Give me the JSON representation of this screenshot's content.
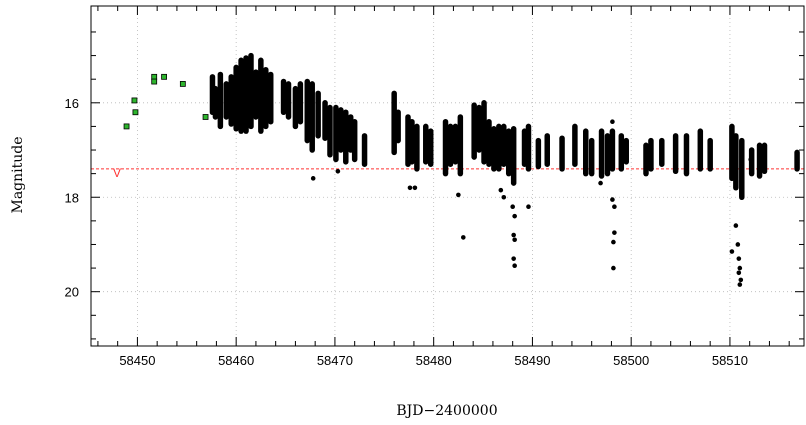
{
  "chart_data": {
    "type": "scatter",
    "title": "",
    "xlabel": "BJD−2400000",
    "ylabel": "Magnitude",
    "xlim": [
      58445.3,
      58517.5
    ],
    "ylim": [
      21.15,
      13.95
    ],
    "y_inverted": true,
    "x_ticks": [
      58450,
      58460,
      58470,
      58480,
      58490,
      58500,
      58510
    ],
    "x_tick_labels": [
      "58450",
      "58460",
      "58470",
      "58480",
      "58490",
      "58500",
      "58510"
    ],
    "y_ticks": [
      16,
      18,
      20
    ],
    "y_tick_labels": [
      "16",
      "18",
      "20"
    ],
    "grid": true,
    "reference_line": {
      "y": 17.4,
      "label": "V",
      "color": "#ff3333"
    },
    "series": [
      {
        "marker": "green-square",
        "color": "#2db52d",
        "points": [
          [
            58448.9,
            16.5
          ],
          [
            58449.7,
            15.95
          ],
          [
            58449.8,
            16.2
          ],
          [
            58451.7,
            15.45
          ],
          [
            58451.7,
            15.55
          ],
          [
            58452.7,
            15.45
          ],
          [
            58454.6,
            15.6
          ],
          [
            58456.9,
            16.3
          ]
        ]
      },
      {
        "marker": "black-dot",
        "color": "#000000",
        "clusters": [
          [
            58457.6,
            15.45,
            16.2
          ],
          [
            58457.9,
            15.7,
            16.3
          ],
          [
            58458.4,
            15.4,
            16.5
          ],
          [
            58459.0,
            15.6,
            16.3
          ],
          [
            58459.5,
            15.45,
            16.45
          ],
          [
            58460.0,
            15.25,
            16.55
          ],
          [
            58460.5,
            15.1,
            16.6
          ],
          [
            58461.0,
            15.05,
            16.6
          ],
          [
            58461.5,
            15.0,
            16.5
          ],
          [
            58462.0,
            15.35,
            16.3
          ],
          [
            58462.5,
            15.1,
            16.6
          ],
          [
            58463.0,
            15.3,
            16.5
          ],
          [
            58463.5,
            15.4,
            16.4
          ],
          [
            58464.8,
            15.55,
            16.2
          ],
          [
            58465.3,
            15.6,
            16.3
          ],
          [
            58466.0,
            15.7,
            16.5
          ],
          [
            58466.5,
            15.6,
            16.4
          ],
          [
            58467.2,
            15.55,
            16.8
          ],
          [
            58467.7,
            15.6,
            17.0
          ],
          [
            58468.3,
            15.8,
            16.7
          ],
          [
            58469.0,
            16.0,
            16.75
          ],
          [
            58469.5,
            16.1,
            17.1
          ],
          [
            58470.1,
            16.1,
            17.2
          ],
          [
            58470.6,
            16.15,
            17.0
          ],
          [
            58471.1,
            16.2,
            17.25
          ],
          [
            58471.6,
            16.3,
            17.0
          ],
          [
            58472.0,
            16.4,
            17.2
          ],
          [
            58473.0,
            16.7,
            17.3
          ],
          [
            58476.0,
            15.8,
            17.05
          ],
          [
            58476.4,
            16.2,
            16.8
          ],
          [
            58477.4,
            16.3,
            17.3
          ],
          [
            58477.8,
            16.4,
            17.25
          ],
          [
            58478.3,
            16.5,
            17.4
          ],
          [
            58479.2,
            16.5,
            17.25
          ],
          [
            58479.7,
            16.6,
            17.3
          ],
          [
            58481.2,
            16.4,
            17.5
          ],
          [
            58481.7,
            16.5,
            17.3
          ],
          [
            58482.2,
            16.5,
            17.25
          ],
          [
            58482.7,
            16.3,
            17.5
          ],
          [
            58484.1,
            16.05,
            17.15
          ],
          [
            58484.6,
            16.1,
            17.0
          ],
          [
            58485.1,
            16.0,
            17.25
          ],
          [
            58485.6,
            16.4,
            17.3
          ],
          [
            58486.1,
            16.55,
            17.4
          ],
          [
            58486.6,
            16.5,
            17.4
          ],
          [
            58487.1,
            16.5,
            17.3
          ],
          [
            58487.6,
            16.6,
            17.5
          ],
          [
            58488.1,
            16.55,
            17.7
          ],
          [
            58489.2,
            16.6,
            17.3
          ],
          [
            58489.6,
            16.5,
            17.4
          ],
          [
            58490.6,
            16.8,
            17.35
          ],
          [
            58491.5,
            16.7,
            17.3
          ],
          [
            58493.0,
            16.75,
            17.4
          ],
          [
            58494.3,
            16.5,
            17.3
          ],
          [
            58495.4,
            16.6,
            17.5
          ],
          [
            58496.0,
            16.8,
            17.5
          ],
          [
            58497.0,
            16.6,
            17.55
          ],
          [
            58497.6,
            16.7,
            17.5
          ],
          [
            58498.1,
            16.6,
            17.4
          ],
          [
            58499.0,
            16.7,
            17.4
          ],
          [
            58499.5,
            16.8,
            17.25
          ],
          [
            58501.5,
            16.9,
            17.5
          ],
          [
            58502.0,
            16.8,
            17.4
          ],
          [
            58503.1,
            16.8,
            17.3
          ],
          [
            58504.5,
            16.7,
            17.45
          ],
          [
            58505.6,
            16.7,
            17.5
          ],
          [
            58507.0,
            16.6,
            17.4
          ],
          [
            58508.0,
            16.8,
            17.4
          ],
          [
            58510.2,
            16.5,
            17.6
          ],
          [
            58510.6,
            16.7,
            17.8
          ],
          [
            58511.2,
            16.8,
            18.0
          ],
          [
            58512.2,
            17.0,
            17.5
          ],
          [
            58513.0,
            16.9,
            17.55
          ],
          [
            58513.5,
            16.9,
            17.45
          ],
          [
            58516.8,
            17.05,
            17.4
          ]
        ],
        "outliers": [
          [
            58467.8,
            17.6
          ],
          [
            58470.3,
            17.45
          ],
          [
            58477.6,
            17.8
          ],
          [
            58478.1,
            17.8
          ],
          [
            58482.5,
            17.95
          ],
          [
            58483.0,
            18.85
          ],
          [
            58486.8,
            17.85
          ],
          [
            58487.1,
            18.0
          ],
          [
            58488.0,
            18.2
          ],
          [
            58488.2,
            18.4
          ],
          [
            58488.1,
            18.8
          ],
          [
            58488.2,
            18.9
          ],
          [
            58488.1,
            19.3
          ],
          [
            58488.2,
            19.45
          ],
          [
            58489.6,
            18.2
          ],
          [
            58496.9,
            17.7
          ],
          [
            58498.1,
            18.05
          ],
          [
            58498.3,
            18.2
          ],
          [
            58498.3,
            18.75
          ],
          [
            58498.2,
            18.95
          ],
          [
            58498.2,
            19.5
          ],
          [
            58498.1,
            16.4
          ],
          [
            58510.2,
            19.15
          ],
          [
            58510.6,
            18.6
          ],
          [
            58510.8,
            19.0
          ],
          [
            58510.9,
            19.3
          ],
          [
            58511.0,
            19.5
          ],
          [
            58510.9,
            19.6
          ],
          [
            58511.1,
            19.75
          ],
          [
            58511.0,
            19.85
          ],
          [
            58512.1,
            17.2
          ]
        ]
      }
    ]
  }
}
